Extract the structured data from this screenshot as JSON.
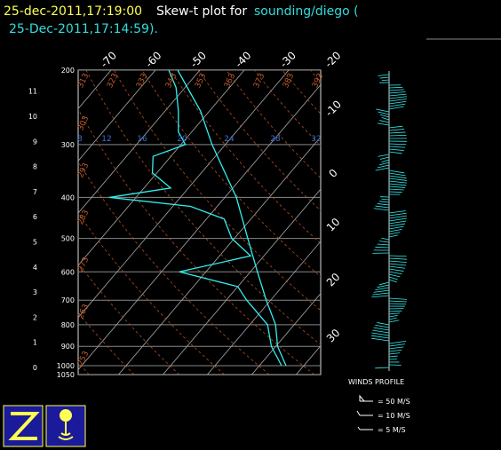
{
  "header": {
    "time": "25-dec-2011,17:19:00",
    "label": "Skew-t plot for",
    "source": "sounding/diego (",
    "source_time": "25-Dec-2011,17:14:59)."
  },
  "pressure_labels": [
    200,
    300,
    400,
    500,
    600,
    700,
    800,
    900,
    1000,
    1050
  ],
  "height_labels": [
    11,
    10,
    9,
    8,
    7,
    6,
    5,
    4,
    3,
    2,
    1,
    0
  ],
  "temperature_labels": [
    -70,
    -60,
    -50,
    -40,
    -30,
    -20
  ],
  "side_temperature_labels": [
    -10,
    0,
    10,
    20,
    30
  ],
  "theta_labels_top": [
    313,
    323,
    333,
    343,
    353,
    363,
    373,
    383,
    393
  ],
  "theta_labels_left": [
    303,
    293,
    283,
    273,
    263,
    253
  ],
  "mixing_ratio_labels": [
    8,
    12,
    16,
    20,
    24,
    28,
    32
  ],
  "temperature_trace": {
    "pressure": [
      1000,
      900,
      800,
      700,
      600,
      500,
      400,
      300,
      250,
      200
    ],
    "temperature": [
      26,
      20.4,
      15.8,
      9,
      1.6,
      -7,
      -17.4,
      -33,
      -42,
      -55
    ]
  },
  "dewpoint_trace": {
    "pressure": [
      1000,
      900,
      800,
      700,
      650,
      600,
      550,
      500,
      450,
      420,
      400,
      380,
      350,
      320,
      300,
      280,
      250,
      220,
      200
    ],
    "dewpoint": [
      25,
      19,
      14,
      4.6,
      0,
      -16,
      -3,
      -10.6,
      -16,
      -26,
      -46,
      -34,
      -41,
      -44,
      -39,
      -43,
      -47,
      -52,
      -57
    ]
  },
  "wind_legend": {
    "title": "WINDS PROFILE",
    "entries": [
      "= 50 M/S",
      "= 10 M/S",
      "= 5 M/S"
    ]
  }
}
